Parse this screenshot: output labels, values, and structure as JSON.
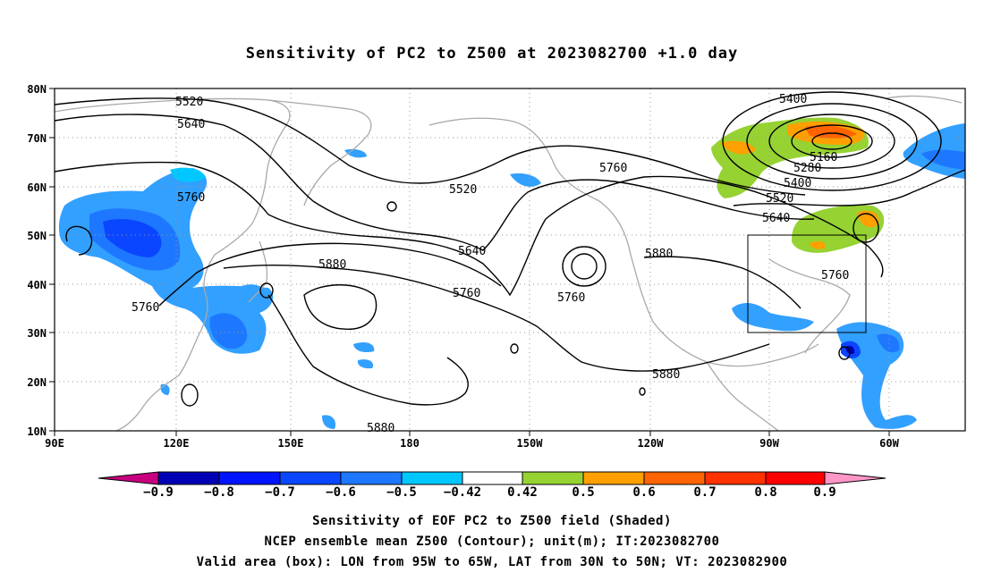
{
  "title": "Sensitivity of PC2 to Z500 at 2023082700 +1.0 day",
  "map": {
    "lat_labels": [
      "80N",
      "70N",
      "60N",
      "50N",
      "40N",
      "30N",
      "20N",
      "10N"
    ],
    "lon_labels": [
      "90E",
      "120E",
      "150E",
      "180",
      "150W",
      "120W",
      "90W",
      "60W"
    ],
    "coastline_color": "#a9a9a9",
    "grid_color": "#999999",
    "contour_color": "#000000",
    "valid_box": {
      "lon_min": "95W",
      "lon_max": "65W",
      "lat_min": "30N",
      "lat_max": "50N"
    }
  },
  "contour_labels": [
    {
      "text": "5520",
      "id": "a"
    },
    {
      "text": "5640",
      "id": "b"
    },
    {
      "text": "5760",
      "id": "c"
    },
    {
      "text": "5760",
      "id": "d"
    },
    {
      "text": "5880",
      "id": "e"
    },
    {
      "text": "5880",
      "id": "f"
    },
    {
      "text": "5520",
      "id": "g"
    },
    {
      "text": "5640",
      "id": "h"
    },
    {
      "text": "5760",
      "id": "i"
    },
    {
      "text": "5760",
      "id": "j"
    },
    {
      "text": "5760",
      "id": "k"
    },
    {
      "text": "5880",
      "id": "l"
    },
    {
      "text": "5880",
      "id": "m"
    },
    {
      "text": "5400",
      "id": "n"
    },
    {
      "text": "5160",
      "id": "o"
    },
    {
      "text": "5280",
      "id": "p"
    },
    {
      "text": "5400",
      "id": "q"
    },
    {
      "text": "5520",
      "id": "r"
    },
    {
      "text": "5640",
      "id": "s"
    },
    {
      "text": "5760",
      "id": "t"
    }
  ],
  "colorbar": {
    "labels": [
      "-0.9",
      "-0.8",
      "-0.7",
      "-0.6",
      "-0.5",
      "-0.42",
      "0.42",
      "0.5",
      "0.6",
      "0.7",
      "0.8",
      "0.9"
    ],
    "colors": [
      "#c8007f",
      "#0000b4",
      "#0014ff",
      "#0a46ff",
      "#1e78ff",
      "#32a0ff",
      "#00c8ff",
      "#ffffff",
      "#96d232",
      "#ffa000",
      "#ff6400",
      "#ff3200",
      "#ff0000",
      "#ff96c8"
    ]
  },
  "caption": {
    "line1": "Sensitivity of EOF PC2 to Z500 field (Shaded)",
    "line2": "NCEP ensemble mean Z500 (Contour); unit(m); IT:2023082700",
    "line3": "Valid area (box): LON from 95W to 65W, LAT from 30N to 50N; VT: 2023082900"
  }
}
